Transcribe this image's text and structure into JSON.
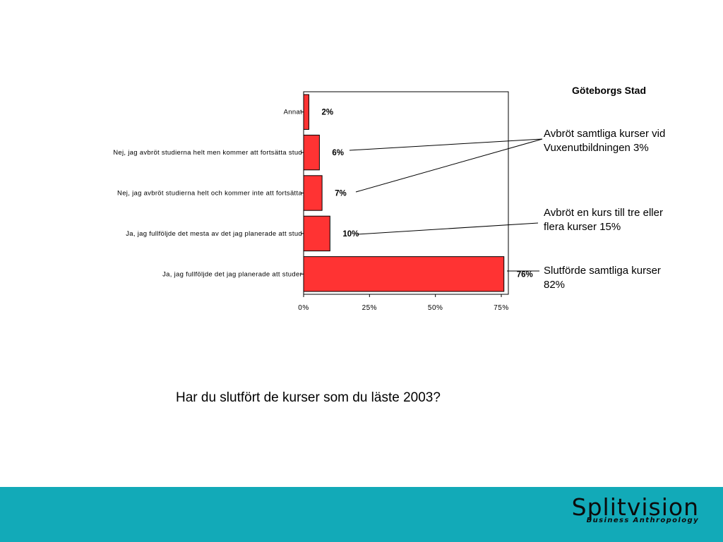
{
  "chart_data": {
    "type": "bar",
    "orientation": "horizontal",
    "title": "Göteborgs Stad",
    "categories": [
      "Annat",
      "Nej, jag avbröt studierna helt men kommer att fortsätta stud",
      "Nej, jag avbröt studierna helt och kommer inte att fortsätta",
      "Ja, jag fullföljde det mesta av det jag planerade att stud",
      "Ja, jag fullföljde det jag planerade att studer"
    ],
    "values": [
      2,
      6,
      7,
      10,
      76
    ],
    "data_labels": [
      "2%",
      "6%",
      "7%",
      "10%",
      "76%"
    ],
    "x_ticks": [
      "0%",
      "25%",
      "50%",
      "75%"
    ],
    "x_tick_values": [
      0,
      25,
      50,
      75
    ],
    "xlim": [
      0,
      78
    ],
    "bar_color": "#ff3333",
    "grid": false,
    "annotations": [
      {
        "lines": [
          "Avbröt samtliga kurser vid",
          "Vuxenutbildningen 3%"
        ]
      },
      {
        "lines": [
          "Avbröt en kurs till tre eller",
          "flera kurser 15%"
        ]
      },
      {
        "lines": [
          "Slutförde samtliga kurser",
          "82%"
        ]
      }
    ]
  },
  "question": "Har du slutfört de kurser som du läste 2003?",
  "footer": {
    "color": "#12aab8",
    "logo_text": "Splitvision",
    "logo_tagline": "Business Anthropology"
  }
}
